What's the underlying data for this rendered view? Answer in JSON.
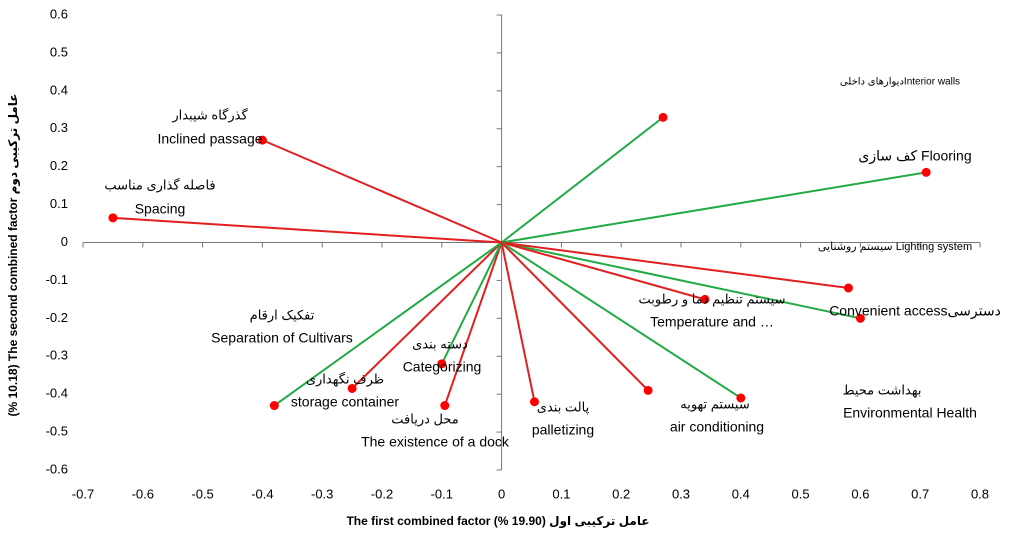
{
  "chart_data": {
    "type": "biplot",
    "x_label": "The first combined factor (% 19.90) عامل ترکیبی اول",
    "y_label": "(% 10.18) The second combined factor عامل ترکیبی دوم",
    "xlim": [
      -0.7,
      0.8
    ],
    "ylim": [
      -0.6,
      0.6
    ],
    "xticks": [
      -0.7,
      -0.6,
      -0.5,
      -0.4,
      -0.3,
      -0.2,
      -0.1,
      0,
      0.1,
      0.2,
      0.3,
      0.4,
      0.5,
      0.6,
      0.7,
      0.8
    ],
    "yticks": [
      -0.6,
      -0.5,
      -0.4,
      -0.3,
      -0.2,
      -0.1,
      0,
      0.1,
      0.2,
      0.3,
      0.4,
      0.5,
      0.6
    ],
    "marker_color": "#ff0000",
    "points": [
      {
        "labels": [
          "دیوارهای داخلیInterior walls"
        ],
        "x": 0.27,
        "y": 0.33,
        "color": "#22aa44"
      },
      {
        "labels": [
          "کف سازی  Flooring"
        ],
        "x": 0.71,
        "y": 0.185,
        "color": "#22aa44"
      },
      {
        "labels": [
          "Convenient accessدسترسی"
        ],
        "x": 0.6,
        "y": -0.2,
        "color": "#22aa44"
      },
      {
        "labels": [
          "سیستم روشنایی Lighting system"
        ],
        "x": 0.58,
        "y": -0.12,
        "color": "#e02020"
      },
      {
        "labels": [
          "سیستم تنظیم دما و رطوبت",
          "Temperature and …"
        ],
        "x": 0.34,
        "y": -0.15,
        "color": "#e02020"
      },
      {
        "labels": [
          "سیستم تهویه",
          "air conditioning"
        ],
        "x": 0.4,
        "y": -0.41,
        "color": "#22aa44"
      },
      {
        "labels": [
          "بهداشت محیط",
          "Environmental Health"
        ],
        "x": 0.245,
        "y": -0.39,
        "color": "#e02020"
      },
      {
        "labels": [
          "پالت بندی",
          "palletizing"
        ],
        "x": 0.055,
        "y": -0.42,
        "color": "#e02020"
      },
      {
        "labels": [
          "محل دریافت",
          "The existence of a dock"
        ],
        "x": -0.095,
        "y": -0.43,
        "color": "#e02020"
      },
      {
        "labels": [
          "دسته بندی",
          "Categorizing"
        ],
        "x": -0.1,
        "y": -0.32,
        "color": "#22aa44"
      },
      {
        "labels": [
          "ظرف نگهداری",
          "storage container"
        ],
        "x": -0.25,
        "y": -0.385,
        "color": "#e02020"
      },
      {
        "labels": [
          "تفکیک ارقام",
          "Separation of Cultivars"
        ],
        "x": -0.38,
        "y": -0.43,
        "color": "#22aa44"
      },
      {
        "labels": [
          "فاصله گذاری مناسب",
          "Spacing"
        ],
        "x": -0.65,
        "y": 0.065,
        "color": "#e02020"
      },
      {
        "labels": [
          "گذرگاه شیبدار",
          "Inclined passage"
        ],
        "x": -0.4,
        "y": 0.27,
        "color": "#e02020"
      }
    ]
  }
}
